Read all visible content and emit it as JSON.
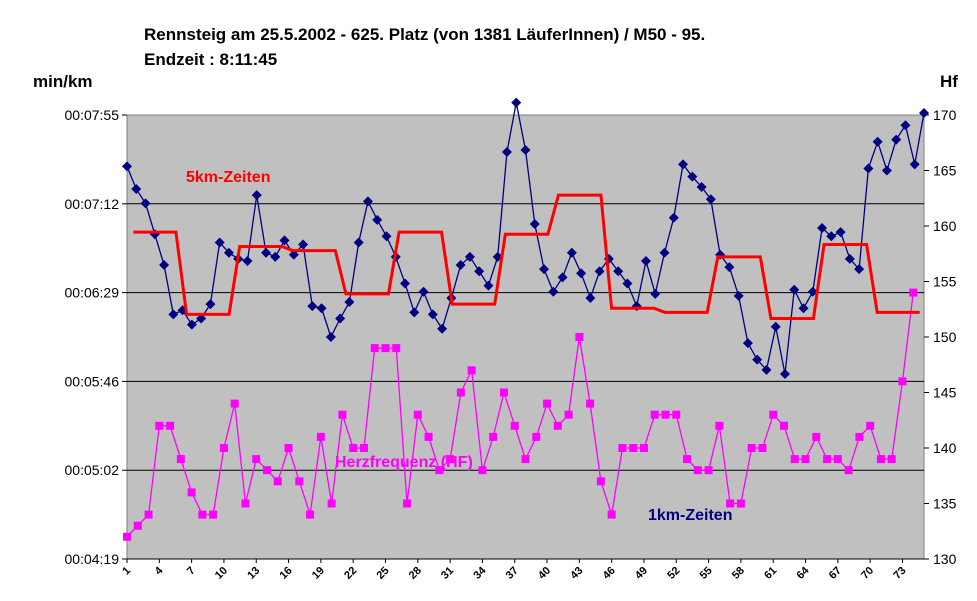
{
  "chart_data": {
    "type": "line",
    "title": "Rennsteig am 25.5.2002 - 625. Platz (von 1381 LäuferInnen) / M50 - 95.",
    "subtitle": "Endzeit : 8:11:45",
    "ylabel_left": "min/km",
    "ylabel_right": "Hf",
    "y_left_ticks": [
      "00:04:19",
      "00:05:02",
      "00:05:46",
      "00:06:29",
      "00:07:12",
      "00:07:55"
    ],
    "y_left_range_seconds": [
      259,
      475
    ],
    "y_right_ticks": [
      "130",
      "135",
      "140",
      "145",
      "150",
      "155",
      "160",
      "165",
      "170"
    ],
    "y_right_range": [
      130,
      170
    ],
    "x_tick_labels": [
      "1",
      "4",
      "7",
      "10",
      "13",
      "16",
      "19",
      "22",
      "25",
      "28",
      "31",
      "34",
      "37",
      "40",
      "43",
      "46",
      "49",
      "52",
      "55",
      "58",
      "61",
      "64",
      "67",
      "70",
      "73"
    ],
    "x_range": [
      1,
      75
    ],
    "grid": "horizontal",
    "colors": {
      "plot_bg": "#c0c0c0",
      "km": "#000080",
      "five_km": "#ff0000",
      "hf": "#ff00ff"
    },
    "series": [
      {
        "name": "1km-Zeiten",
        "axis": "left",
        "unit": "seconds per km",
        "values": [
          450,
          439,
          432,
          417,
          402,
          378,
          380,
          373,
          376,
          383,
          413,
          408,
          405,
          404,
          436,
          408,
          406,
          414,
          407,
          412,
          382,
          381,
          367,
          376,
          384,
          413,
          433,
          424,
          416,
          406,
          393,
          379,
          389,
          378,
          371,
          386,
          402,
          406,
          399,
          392,
          406,
          457,
          481,
          458,
          422,
          400,
          389,
          396,
          408,
          398,
          386,
          399,
          405,
          399,
          393,
          382,
          404,
          388,
          408,
          425,
          451,
          445,
          440,
          434,
          407,
          401,
          387,
          364,
          356,
          351,
          372,
          349,
          390,
          381,
          389,
          420,
          416,
          418,
          405,
          400,
          449,
          462,
          448,
          463,
          470,
          451,
          476
        ]
      },
      {
        "name": "5km-Zeiten",
        "axis": "left",
        "unit": "seconds per km",
        "values": [
          418,
          418,
          418,
          418,
          418,
          378,
          378,
          378,
          378,
          378,
          411,
          411,
          411,
          411,
          411,
          409,
          409,
          409,
          409,
          409,
          388,
          388,
          388,
          388,
          388,
          418,
          418,
          418,
          418,
          418,
          383,
          383,
          383,
          383,
          383,
          417,
          417,
          417,
          417,
          417,
          436,
          436,
          436,
          436,
          436,
          381,
          381,
          381,
          381,
          381,
          379,
          379,
          379,
          379,
          379,
          406,
          406,
          406,
          406,
          406,
          376,
          376,
          376,
          376,
          376,
          412,
          412,
          412,
          412,
          412,
          379,
          379,
          379,
          379,
          379
        ]
      },
      {
        "name": "Herzfrequenz (HF)",
        "axis": "right",
        "unit": "bpm",
        "values": [
          132,
          133,
          134,
          142,
          142,
          139,
          136,
          134,
          134,
          140,
          144,
          135,
          139,
          138,
          137,
          140,
          137,
          134,
          141,
          135,
          143,
          140,
          140,
          149,
          149,
          149,
          135,
          143,
          141,
          138,
          139,
          145,
          147,
          138,
          141,
          145,
          142,
          139,
          141,
          144,
          142,
          143,
          150,
          144,
          137,
          134,
          140,
          140,
          140,
          143,
          143,
          143,
          139,
          138,
          138,
          142,
          135,
          135,
          140,
          140,
          143,
          142,
          139,
          139,
          141,
          139,
          139,
          138,
          141,
          142,
          139,
          139,
          146,
          154
        ]
      }
    ],
    "annotations": [
      {
        "text": "5km-Zeiten",
        "color": "#ff0000"
      },
      {
        "text": "Herzfrequenz (HF)",
        "color": "#ff00ff"
      },
      {
        "text": "1km-Zeiten",
        "color": "#000080"
      }
    ]
  }
}
